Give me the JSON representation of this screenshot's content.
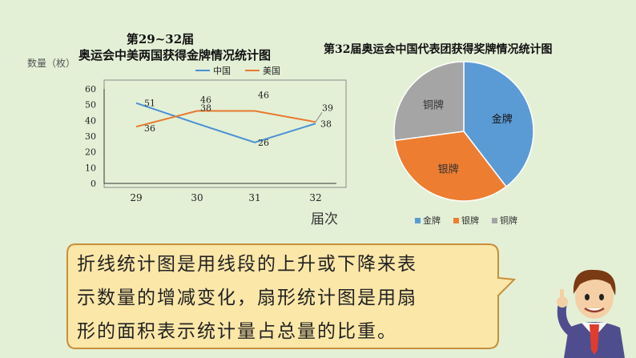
{
  "line_chart": {
    "title_line1": "第29~32届",
    "title_line2": "奥运会中美两国获得金牌情况统计图",
    "ylabel": "数量（枚）",
    "xlabel": "届次"
  },
  "pie_chart": {
    "title": "第32届奥运会中国代表团获得奖牌情况统计图"
  },
  "callout": {
    "lines": [
      "折线统计图是用线段的上升或下降来表",
      "示数量的增减变化，扇形统计图是用扇",
      "形的面积表示统计量占总量的比重。"
    ]
  },
  "colors": {
    "background": "#e3f0d6",
    "china": "#4a90d4",
    "usa": "#e8792f",
    "gold": "#5b9bd5",
    "silver": "#ed7d31",
    "bronze": "#a5a5a5",
    "callout_fill": "#fbe7a8",
    "callout_border": "#c78f3a"
  },
  "chart_data": [
    {
      "type": "line",
      "title": "第29~32届 奥运会中美两国获得金牌情况统计图",
      "xlabel": "届次",
      "ylabel": "数量（枚）",
      "categories": [
        "29",
        "30",
        "31",
        "32"
      ],
      "ylim": [
        0,
        60
      ],
      "yticks": [
        0,
        10,
        20,
        30,
        40,
        50,
        60
      ],
      "legend": "top",
      "grid": false,
      "series": [
        {
          "name": "中国",
          "values": [
            51,
            38,
            26,
            38
          ]
        },
        {
          "name": "美国",
          "values": [
            36,
            46,
            46,
            39
          ]
        }
      ]
    },
    {
      "type": "pie",
      "title": "第32届奥运会中国代表团获得奖牌情况统计图",
      "legend": "bottom",
      "labels": [
        "金牌",
        "银牌",
        "铜牌"
      ],
      "values": [
        38,
        32,
        26
      ]
    }
  ]
}
